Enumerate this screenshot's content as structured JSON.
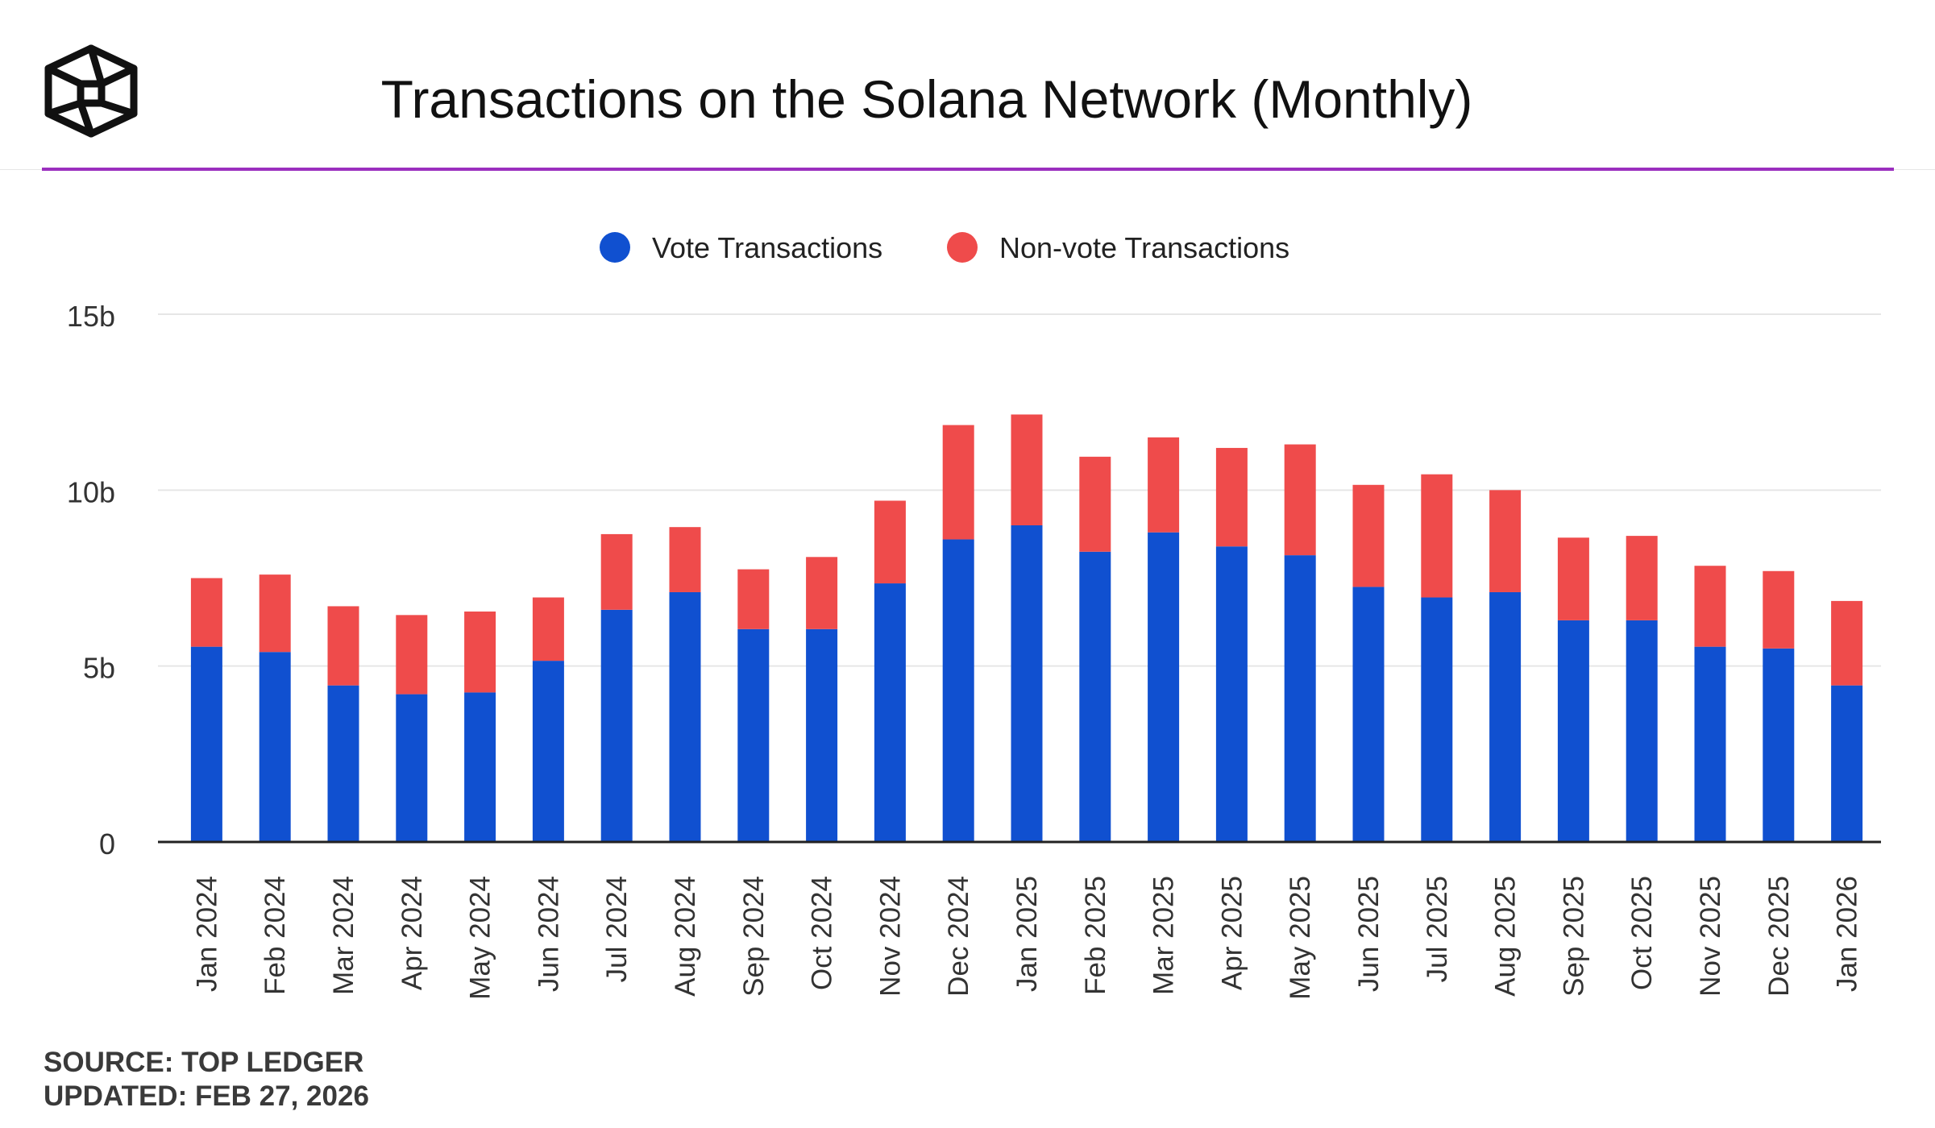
{
  "header": {
    "title": "Transactions on the Solana Network (Monthly)",
    "logo_icon": "cube-logo-icon"
  },
  "footer": {
    "source": "SOURCE: TOP LEDGER",
    "updated": "UPDATED: FEB 27, 2026"
  },
  "colors": {
    "vote": "#1050d0",
    "non_vote": "#ef4b4b",
    "accent": "#9b2fbf",
    "grid": "#e6e6e6",
    "axis": "#222222"
  },
  "chart_data": {
    "type": "bar",
    "stacked": true,
    "title": "Transactions on the Solana Network (Monthly)",
    "xlabel": "",
    "ylabel": "",
    "ylim": [
      0,
      15
    ],
    "yticks": [
      0,
      5,
      10,
      15
    ],
    "ytick_labels": [
      "0",
      "5b",
      "10b",
      "15b"
    ],
    "grid": true,
    "legend": "top-center",
    "categories": [
      "Jan 2024",
      "Feb 2024",
      "Mar 2024",
      "Apr 2024",
      "May 2024",
      "Jun 2024",
      "Jul 2024",
      "Aug 2024",
      "Sep 2024",
      "Oct 2024",
      "Nov 2024",
      "Dec 2024",
      "Jan 2025",
      "Feb 2025",
      "Mar 2025",
      "Apr 2025",
      "May 2025",
      "Jun 2025",
      "Jul 2025",
      "Aug 2025",
      "Sep 2025",
      "Oct 2025",
      "Nov 2025",
      "Dec 2025",
      "Jan 2026"
    ],
    "series": [
      {
        "name": "Vote Transactions",
        "values": [
          5.55,
          5.4,
          4.45,
          4.2,
          4.25,
          5.15,
          6.6,
          7.1,
          6.05,
          6.05,
          7.35,
          8.6,
          9.0,
          8.25,
          8.8,
          8.4,
          8.15,
          7.25,
          6.95,
          7.1,
          6.3,
          6.3,
          5.55,
          5.5,
          4.45
        ]
      },
      {
        "name": "Non-vote Transactions",
        "values": [
          1.95,
          2.2,
          2.25,
          2.25,
          2.3,
          1.8,
          2.15,
          1.85,
          1.7,
          2.05,
          2.35,
          3.25,
          3.15,
          2.7,
          2.7,
          2.8,
          3.15,
          2.9,
          3.5,
          2.9,
          2.35,
          2.4,
          2.3,
          2.2,
          2.4
        ]
      }
    ]
  }
}
